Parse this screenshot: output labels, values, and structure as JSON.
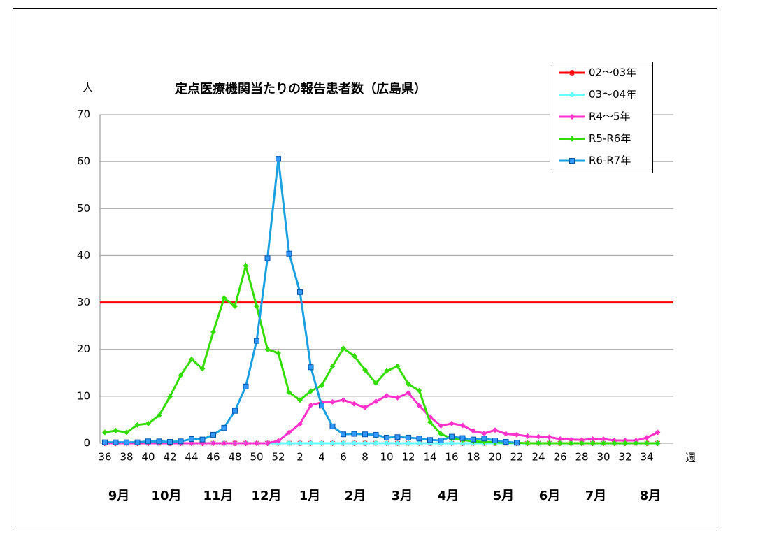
{
  "chart_data": {
    "type": "line",
    "title": "定点医療機関当たりの報告患者数（広島県）",
    "y_label": "人",
    "x_label": "週",
    "categories": [
      "36",
      null,
      "38",
      null,
      "40",
      null,
      "42",
      null,
      "44",
      null,
      "46",
      null,
      "48",
      null,
      "50",
      null,
      "52",
      null,
      "2",
      null,
      "4",
      null,
      "6",
      null,
      "8",
      null,
      "10",
      null,
      "12",
      null,
      "14",
      null,
      "16",
      null,
      "18",
      null,
      "20",
      null,
      "22",
      null,
      "24",
      null,
      "26",
      null,
      "28",
      null,
      "30",
      null,
      "32",
      null,
      "34",
      null
    ],
    "months": [
      "9月",
      "10月",
      "11月",
      "12月",
      "1月",
      "2月",
      "3月",
      "4月",
      "5月",
      "6月",
      "7月",
      "8月"
    ],
    "ylim": [
      0,
      70
    ],
    "yticks": [
      0,
      10,
      20,
      30,
      40,
      50,
      60,
      70
    ],
    "grid": true,
    "reference_line": {
      "value": 30,
      "color": "#ff0000"
    },
    "legend": "top-right",
    "series": [
      {
        "name": "02～03年",
        "color": "#ff0000",
        "marker": "asterisk",
        "values": [
          0,
          0,
          0,
          0,
          0,
          0,
          0,
          0,
          0,
          0,
          0,
          0,
          0,
          0,
          0,
          0,
          0,
          0,
          0,
          0,
          0,
          0,
          0,
          0,
          0,
          0,
          0,
          0,
          0,
          0,
          0,
          0,
          0,
          0,
          0,
          0,
          0,
          0,
          0,
          0,
          0,
          0,
          0,
          0,
          0,
          0,
          0,
          0,
          0,
          0,
          0,
          0
        ]
      },
      {
        "name": "03～04年",
        "color": "#66ffff",
        "marker": "circle",
        "values": [
          0,
          0,
          0,
          0,
          0,
          0,
          0,
          0,
          0,
          0,
          0,
          0,
          0,
          0,
          0,
          0,
          0,
          0,
          0,
          0,
          0,
          0,
          0,
          0,
          0,
          0,
          0,
          0,
          0,
          0,
          0,
          0,
          0,
          0,
          0,
          0,
          0,
          0,
          0,
          0,
          0,
          0,
          0,
          0,
          0,
          0,
          0,
          0,
          0,
          0,
          0,
          0
        ]
      },
      {
        "name": "R4～5年",
        "color": "#ff33cc",
        "marker": "diamond",
        "values": [
          0,
          0,
          0,
          0,
          0,
          0,
          0,
          0,
          0,
          0,
          0,
          0,
          0,
          0,
          0,
          0,
          0.5,
          2.3,
          4.1,
          8.1,
          8.7,
          8.8,
          9.2,
          8.4,
          7.6,
          8.9,
          10.1,
          9.7,
          10.7,
          8.0,
          5.6,
          3.7,
          4.2,
          3.8,
          2.6,
          2.1,
          2.8,
          2.0,
          1.8,
          1.5,
          1.4,
          1.3,
          0.9,
          0.8,
          0.7,
          0.9,
          0.9,
          0.6,
          0.6,
          0.6,
          1.2,
          2.3
        ]
      },
      {
        "name": "R5-R6年",
        "color": "#33dd00",
        "marker": "diamond",
        "values": [
          2.3,
          2.7,
          2.3,
          3.9,
          4.2,
          5.9,
          9.9,
          14.5,
          17.9,
          15.9,
          23.7,
          30.9,
          29.2,
          37.8,
          29.2,
          20.0,
          19.2,
          10.8,
          9.2,
          11.1,
          12.3,
          16.4,
          20.2,
          18.6,
          15.6,
          12.8,
          15.4,
          16.4,
          12.6,
          11.2,
          4.5,
          2.0,
          1.0,
          0.7,
          0.4,
          0.3,
          0.2,
          0.1,
          0.1,
          0,
          0,
          0,
          0,
          0,
          0,
          0,
          0,
          0,
          0,
          0,
          0,
          0
        ]
      },
      {
        "name": "R6-R7年",
        "color": "#1aa0e0",
        "marker": "square",
        "values": [
          0.2,
          0.2,
          0.2,
          0.2,
          0.4,
          0.4,
          0.3,
          0.4,
          0.9,
          0.8,
          1.8,
          3.3,
          6.9,
          12.1,
          21.8,
          39.4,
          60.6,
          40.4,
          32.2,
          16.2,
          8.0,
          3.6,
          1.9,
          2.0,
          1.9,
          1.8,
          1.2,
          1.3,
          1.2,
          1.0,
          0.7,
          0.6,
          1.4,
          1.1,
          0.8,
          1.0,
          0.6,
          0.3,
          0.1,
          null,
          null,
          null,
          null,
          null,
          null,
          null,
          null,
          null,
          null,
          null,
          null,
          null
        ]
      }
    ]
  }
}
